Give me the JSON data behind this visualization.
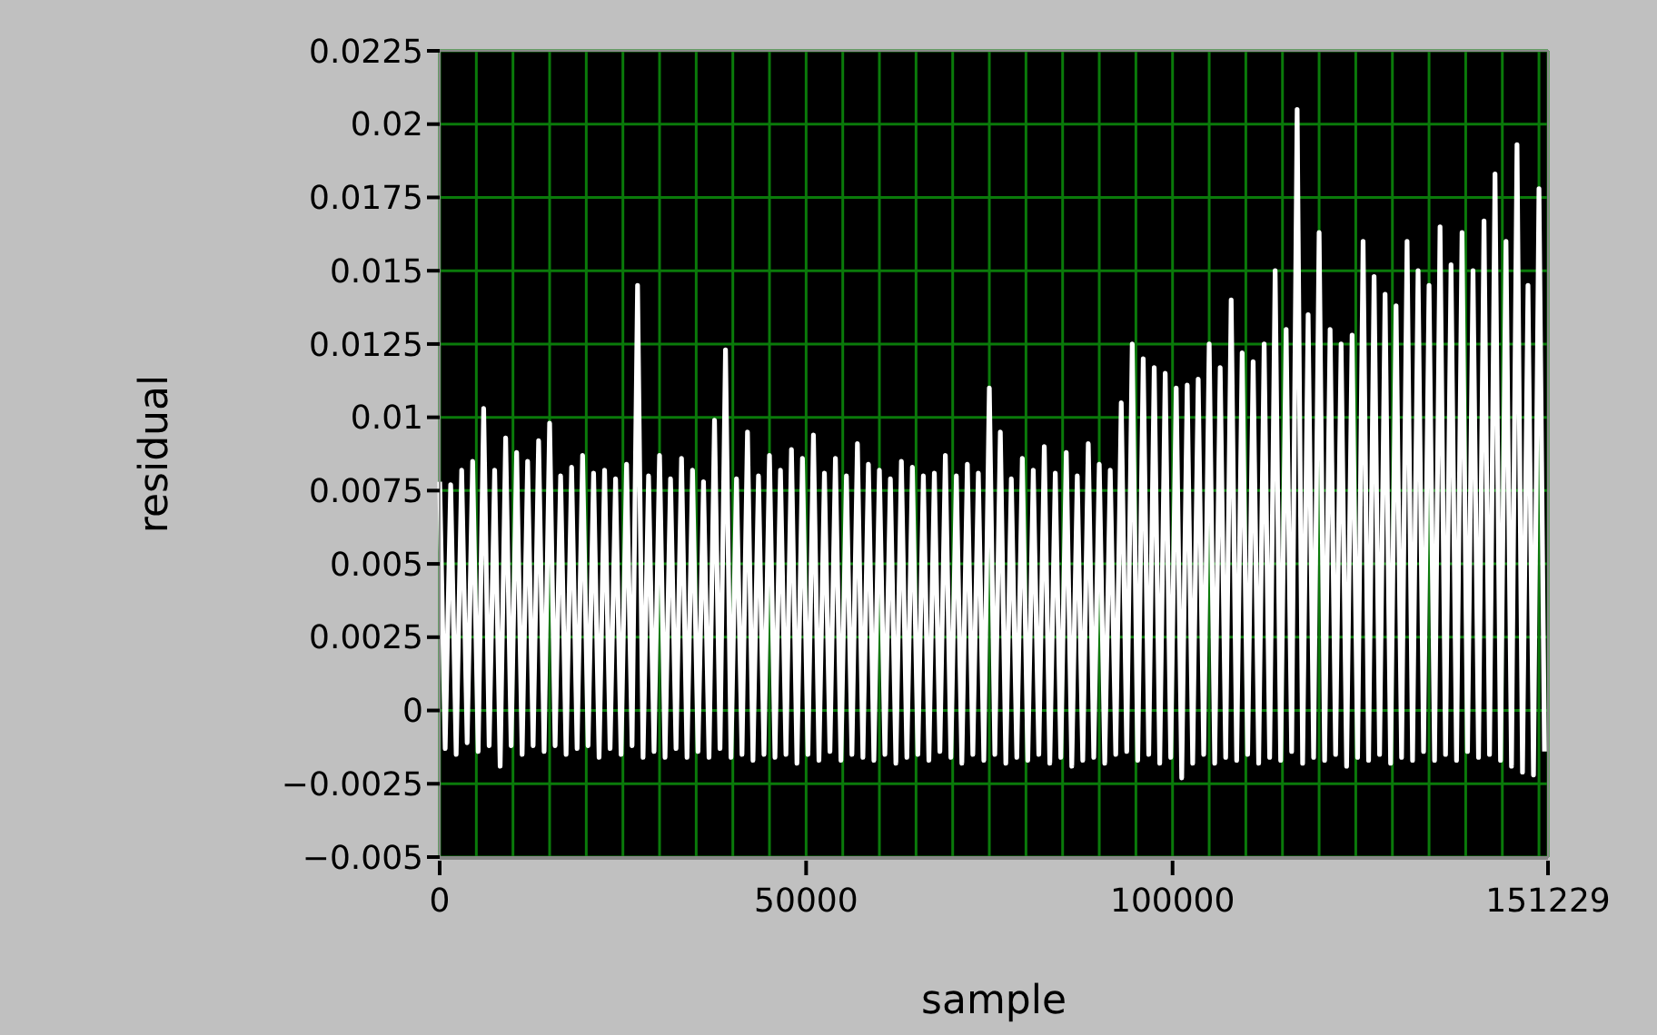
{
  "chart_data": {
    "type": "line",
    "xlabel": "sample",
    "ylabel": "residual",
    "xlim": [
      0,
      151229
    ],
    "xticks": [
      0,
      {
        "value": 5000,
        "label": null
      },
      {
        "value": 10000,
        "label": null
      },
      {
        "value": 15000,
        "label": null
      },
      {
        "value": 20000,
        "label": null
      },
      {
        "value": 25000,
        "label": null
      },
      {
        "value": 30000,
        "label": null
      },
      {
        "value": 35000,
        "label": null
      },
      {
        "value": 40000,
        "label": null
      },
      {
        "value": 45000,
        "label": null
      },
      50000,
      {
        "value": 55000,
        "label": null
      },
      {
        "value": 60000,
        "label": null
      },
      {
        "value": 65000,
        "label": null
      },
      {
        "value": 70000,
        "label": null
      },
      {
        "value": 75000,
        "label": null
      },
      {
        "value": 80000,
        "label": null
      },
      {
        "value": 85000,
        "label": null
      },
      {
        "value": 90000,
        "label": null
      },
      {
        "value": 95000,
        "label": null
      },
      100000,
      {
        "value": 105000,
        "label": null
      },
      {
        "value": 110000,
        "label": null
      },
      {
        "value": 115000,
        "label": null
      },
      {
        "value": 120000,
        "label": null
      },
      {
        "value": 125000,
        "label": null
      },
      {
        "value": 130000,
        "label": null
      },
      {
        "value": 135000,
        "label": null
      },
      {
        "value": 140000,
        "label": null
      },
      {
        "value": 145000,
        "label": null
      },
      {
        "value": 150000,
        "label": null
      },
      151229
    ],
    "ylim": [
      -0.005,
      0.0225
    ],
    "yticks": [
      {
        "value": -0.005,
        "label": "−0.005"
      },
      {
        "value": -0.0025,
        "label": "−0.0025"
      },
      0,
      0.0025,
      0.005,
      0.0075,
      0.01,
      0.0125,
      0.015,
      0.0175,
      0.02,
      0.0225
    ],
    "grid": true,
    "marker": "none",
    "line_style": "solid",
    "series": [
      {
        "color": "#ffffff",
        "x": [
          0,
          750,
          1500,
          2250,
          3000,
          3750,
          4500,
          5250,
          6000,
          6750,
          7500,
          8250,
          9000,
          9750,
          10500,
          11250,
          12000,
          12750,
          13500,
          14250,
          15000,
          15750,
          16500,
          17250,
          18000,
          18750,
          19500,
          20250,
          21000,
          21750,
          22500,
          23250,
          24000,
          24750,
          25500,
          26250,
          27000,
          27750,
          28500,
          29250,
          30000,
          30750,
          31500,
          32250,
          33000,
          33750,
          34500,
          35250,
          36000,
          36750,
          37500,
          38250,
          39000,
          39750,
          40500,
          41250,
          42000,
          42750,
          43500,
          44250,
          45000,
          45750,
          46500,
          47250,
          48000,
          48750,
          49500,
          50250,
          51000,
          51750,
          52500,
          53250,
          54000,
          54750,
          55500,
          56250,
          57000,
          57750,
          58500,
          59250,
          60000,
          60750,
          61500,
          62250,
          63000,
          63750,
          64500,
          65250,
          66000,
          66750,
          67500,
          68250,
          69000,
          69750,
          70500,
          71250,
          72000,
          72750,
          73500,
          74250,
          75000,
          75750,
          76500,
          77250,
          78000,
          78750,
          79500,
          80250,
          81000,
          81750,
          82500,
          83250,
          84000,
          84750,
          85500,
          86250,
          87000,
          87750,
          88500,
          89250,
          90000,
          90750,
          91500,
          92250,
          93000,
          93750,
          94500,
          95250,
          96000,
          96750,
          97500,
          98250,
          99000,
          99750,
          100500,
          101250,
          102000,
          102750,
          103500,
          104250,
          105000,
          105750,
          106500,
          107250,
          108000,
          108750,
          109500,
          110250,
          111000,
          111750,
          112500,
          113250,
          114000,
          114750,
          115500,
          116250,
          117000,
          117750,
          118500,
          119250,
          120000,
          120750,
          121500,
          122250,
          123000,
          123750,
          124500,
          125250,
          126000,
          126750,
          127500,
          128250,
          129000,
          129750,
          130500,
          131250,
          132000,
          132750,
          133500,
          134250,
          135000,
          135750,
          136500,
          137250,
          138000,
          138750,
          139500,
          140250,
          141000,
          141750,
          142500,
          143250,
          144000,
          144750,
          145500,
          146250,
          147000,
          147750,
          148500,
          149250,
          150000,
          150750
        ],
        "values": [
          0.0078,
          -0.0013,
          0.0077,
          -0.0015,
          0.0082,
          -0.0011,
          0.0085,
          -0.0014,
          0.0103,
          -0.0012,
          0.0082,
          -0.0019,
          0.0093,
          -0.0012,
          0.0088,
          -0.0015,
          0.0085,
          -0.0012,
          0.0092,
          -0.0014,
          0.0098,
          -0.0012,
          0.008,
          -0.0015,
          0.0083,
          -0.0013,
          0.0087,
          -0.0012,
          0.0081,
          -0.0016,
          0.0082,
          -0.0013,
          0.0079,
          -0.0015,
          0.0084,
          -0.0012,
          0.0145,
          -0.0016,
          0.008,
          -0.0014,
          0.0087,
          -0.0016,
          0.0079,
          -0.0013,
          0.0086,
          -0.0016,
          0.0082,
          -0.0014,
          0.0078,
          -0.0016,
          0.0099,
          -0.0013,
          0.0123,
          -0.0016,
          0.0079,
          -0.0015,
          0.0095,
          -0.0017,
          0.008,
          -0.0015,
          0.0087,
          -0.0016,
          0.0082,
          -0.0015,
          0.0089,
          -0.0018,
          0.0086,
          -0.0015,
          0.0094,
          -0.0017,
          0.0081,
          -0.0014,
          0.0086,
          -0.0017,
          0.008,
          -0.0015,
          0.0091,
          -0.0016,
          0.0084,
          -0.0017,
          0.0082,
          -0.0015,
          0.0079,
          -0.0018,
          0.0085,
          -0.0016,
          0.0083,
          -0.0015,
          0.008,
          -0.0017,
          0.0081,
          -0.0014,
          0.0087,
          -0.0016,
          0.008,
          -0.0018,
          0.0084,
          -0.0015,
          0.0081,
          -0.0017,
          0.011,
          -0.0015,
          0.0095,
          -0.0018,
          0.0079,
          -0.0016,
          0.0086,
          -0.0017,
          0.0082,
          -0.0015,
          0.009,
          -0.0018,
          0.0081,
          -0.0016,
          0.0088,
          -0.0019,
          0.008,
          -0.0017,
          0.0091,
          -0.0016,
          0.0084,
          -0.0018,
          0.0082,
          -0.0015,
          0.0105,
          -0.0014,
          0.0125,
          -0.0017,
          0.012,
          -0.0015,
          0.0117,
          -0.0018,
          0.0115,
          -0.0016,
          0.011,
          -0.0023,
          0.0111,
          -0.0018,
          0.0113,
          -0.0015,
          0.0125,
          -0.0018,
          0.0117,
          -0.0016,
          0.014,
          -0.0017,
          0.0122,
          -0.0015,
          0.0119,
          -0.0018,
          0.0125,
          -0.0016,
          0.015,
          -0.0017,
          0.013,
          -0.0014,
          0.0205,
          -0.0018,
          0.0135,
          -0.0016,
          0.0163,
          -0.0017,
          0.013,
          -0.0015,
          0.0125,
          -0.0019,
          0.0128,
          -0.0016,
          0.016,
          -0.0017,
          0.0148,
          -0.0015,
          0.0142,
          -0.0018,
          0.0138,
          -0.0016,
          0.016,
          -0.0017,
          0.015,
          -0.0014,
          0.0145,
          -0.0017,
          0.0165,
          -0.0015,
          0.0152,
          -0.0017,
          0.0163,
          -0.0014,
          0.015,
          -0.0016,
          0.0167,
          -0.0015,
          0.0183,
          -0.0017,
          0.016,
          -0.0019,
          0.0193,
          -0.0021,
          0.0145,
          -0.0022,
          0.0178,
          -0.0014
        ]
      }
    ]
  }
}
